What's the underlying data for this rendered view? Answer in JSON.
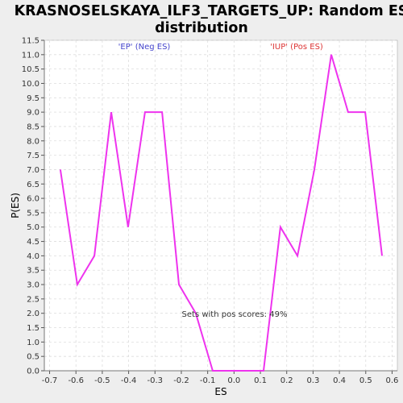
{
  "chart_data": {
    "type": "line",
    "title_line1": "KRASNOSELSKAYA_ILF3_TARGETS_UP: Random ES",
    "title_line2": "distribution",
    "xlabel": "ES",
    "ylabel": "P(ES)",
    "xlim": [
      -0.72,
      0.62
    ],
    "ylim": [
      0,
      11.5
    ],
    "x_ticks": [
      -0.7,
      -0.6,
      -0.5,
      -0.4,
      -0.3,
      -0.2,
      -0.1,
      0.0,
      0.1,
      0.2,
      0.3,
      0.4,
      0.5,
      0.6
    ],
    "x_tick_labels": [
      "-0.7",
      "-0.6",
      "-0.5",
      "-0.4",
      "-0.3",
      "-0.2",
      "-0.1",
      "0.0",
      "0.1",
      "0.2",
      "0.3",
      "0.4",
      "0.5",
      "0.6"
    ],
    "y_ticks": [
      0,
      0.5,
      1,
      1.5,
      2,
      2.5,
      3,
      3.5,
      4,
      4.5,
      5,
      5.5,
      6,
      6.5,
      7,
      7.5,
      8,
      8.5,
      9,
      9.5,
      10,
      10.5,
      11,
      11.5
    ],
    "y_tick_labels": [
      "0.0",
      "0.5",
      "1.0",
      "1.5",
      "2.0",
      "2.5",
      "3.0",
      "3.5",
      "4.0",
      "4.5",
      "5.0",
      "5.5",
      "6.0",
      "6.5",
      "7.0",
      "7.5",
      "8.0",
      "8.5",
      "9.0",
      "9.5",
      "10.0",
      "10.5",
      "11.0",
      "11.5"
    ],
    "grid": true,
    "series": [
      {
        "color": "#ee33ee",
        "x": [
          -0.659,
          -0.595,
          -0.53,
          -0.466,
          -0.402,
          -0.338,
          -0.273,
          -0.209,
          -0.145,
          -0.081,
          -0.016,
          0.048,
          0.112,
          0.176,
          0.241,
          0.305,
          0.369,
          0.433,
          0.498,
          0.562
        ],
        "y": [
          7,
          3,
          4,
          9,
          5,
          9,
          9,
          3,
          2,
          0,
          0,
          0,
          0,
          5,
          4,
          7,
          11,
          9,
          9,
          4
        ]
      }
    ],
    "annotations": [
      {
        "text": "'EP' (Neg ES)",
        "color": "#4444cc"
      },
      {
        "text": "'IUP' (Pos ES)",
        "color": "#dd3333"
      },
      {
        "text": "Sets with pos scores: 49%",
        "color": "#333333"
      }
    ]
  }
}
